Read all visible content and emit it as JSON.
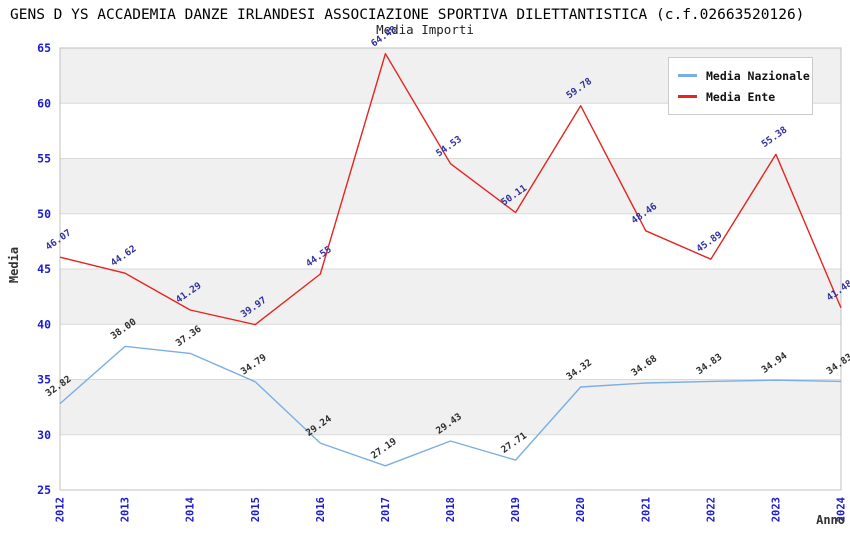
{
  "header": {
    "title": "GENS D YS ACCADEMIA DANZE IRLANDESI ASSOCIAZIONE SPORTIVA DILETTANTISTICA (c.f.02663520126)"
  },
  "chart_data": {
    "type": "line",
    "title": "Media Importi",
    "xlabel": "Anno",
    "ylabel": "Media",
    "ylim": [
      25,
      65
    ],
    "ytick_step": 5,
    "grid": "horizontal-bands-alternating",
    "legend_position": "top-right",
    "band_colors": [
      "#f0f0f0",
      "#ffffff"
    ],
    "gridline_color": "#d9d9d9",
    "border_color": "#c0c0c0",
    "tick_label_color": "#1b1bd1",
    "categories": [
      "2012",
      "2013",
      "2014",
      "2015",
      "2016",
      "2017",
      "2018",
      "2019",
      "2020",
      "2021",
      "2022",
      "2023",
      "2024"
    ],
    "series": [
      {
        "name": "Media Nazionale",
        "color": "#7aafe3",
        "label_color": "#2e2e2e",
        "values": [
          32.82,
          38.0,
          37.36,
          34.79,
          29.24,
          27.19,
          29.43,
          27.71,
          34.32,
          34.68,
          34.83,
          34.94,
          34.83
        ],
        "labels": [
          "32.82",
          "38.00",
          "37.36",
          "34.79",
          "29.24",
          "27.19",
          "29.43",
          "27.71",
          "34.32",
          "34.68",
          "34.83",
          "34.94",
          "34.83"
        ]
      },
      {
        "name": "Media Ente",
        "color": "#e42522",
        "label_color": "#31319e",
        "values": [
          46.07,
          44.62,
          41.29,
          39.97,
          44.55,
          64.48,
          54.53,
          50.11,
          59.78,
          48.46,
          45.89,
          55.38,
          41.48
        ],
        "labels": [
          "46.07",
          "44.62",
          "41.29",
          "39.97",
          "44.55",
          "64.48",
          "54.53",
          "50.11",
          "59.78",
          "48.46",
          "45.89",
          "55.38",
          "41.48"
        ]
      }
    ]
  }
}
